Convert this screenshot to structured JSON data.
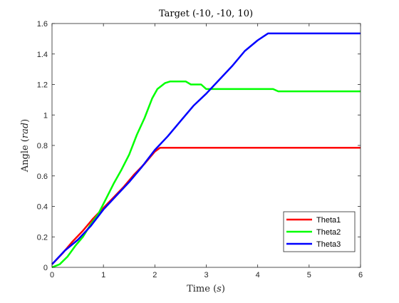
{
  "chart_data": {
    "type": "line",
    "title": "Target (-10, -10, 10)",
    "xlabel": "Time",
    "xlabel_unit": "s",
    "ylabel": "Angle",
    "ylabel_unit": "rad",
    "xlim": [
      0,
      6
    ],
    "ylim": [
      0,
      1.6
    ],
    "xticks": [
      0,
      1,
      2,
      3,
      4,
      5,
      6
    ],
    "yticks": [
      0,
      0.2,
      0.4,
      0.6,
      0.8,
      1,
      1.2,
      1.4,
      1.6
    ],
    "ytick_labels": [
      "0",
      "0.2",
      "0.4",
      "0.6",
      "0.8",
      "1",
      "1.2",
      "1.4",
      "1.6"
    ],
    "grid": false,
    "legend_position": "bottom-right",
    "series": [
      {
        "name": "Theta1",
        "color": "#ff0000",
        "x": [
          0,
          0.2,
          0.4,
          0.6,
          0.8,
          1.0,
          1.2,
          1.4,
          1.6,
          1.8,
          2.0,
          2.1,
          3.0,
          4.0,
          5.0,
          6.0
        ],
        "y": [
          0.02,
          0.09,
          0.17,
          0.24,
          0.32,
          0.39,
          0.46,
          0.53,
          0.61,
          0.68,
          0.76,
          0.785,
          0.785,
          0.785,
          0.785,
          0.785
        ]
      },
      {
        "name": "Theta2",
        "color": "#00ff00",
        "x": [
          0,
          0.15,
          0.3,
          0.45,
          0.6,
          0.75,
          0.9,
          1.05,
          1.2,
          1.35,
          1.5,
          1.65,
          1.8,
          1.95,
          2.05,
          2.2,
          2.3,
          2.6,
          2.7,
          2.9,
          3.0,
          3.5,
          4.0,
          4.3,
          4.4,
          5.0,
          6.0
        ],
        "y": [
          0,
          0.02,
          0.07,
          0.14,
          0.2,
          0.28,
          0.35,
          0.45,
          0.55,
          0.64,
          0.74,
          0.87,
          0.98,
          1.11,
          1.17,
          1.21,
          1.22,
          1.22,
          1.2,
          1.2,
          1.17,
          1.17,
          1.17,
          1.17,
          1.155,
          1.155,
          1.155
        ]
      },
      {
        "name": "Theta3",
        "color": "#0000ff",
        "x": [
          0,
          0.25,
          0.5,
          0.75,
          1.0,
          1.25,
          1.5,
          1.75,
          2.0,
          2.25,
          2.5,
          2.75,
          3.0,
          3.25,
          3.5,
          3.75,
          4.0,
          4.2,
          4.5,
          5.0,
          6.0
        ],
        "y": [
          0.02,
          0.11,
          0.18,
          0.27,
          0.38,
          0.47,
          0.56,
          0.66,
          0.77,
          0.86,
          0.96,
          1.06,
          1.14,
          1.23,
          1.32,
          1.42,
          1.49,
          1.535,
          1.535,
          1.535,
          1.535
        ]
      }
    ]
  }
}
